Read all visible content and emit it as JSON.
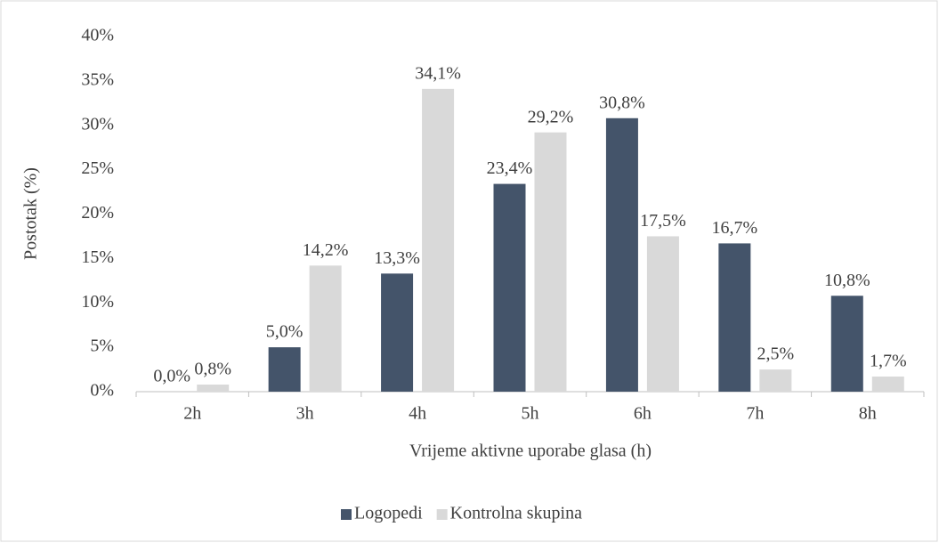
{
  "chart_data": {
    "type": "bar",
    "x_label": "Vrijeme aktivne uporabe glasa (h)",
    "y_label": "Postotak (%)",
    "categories": [
      "2h",
      "3h",
      "4h",
      "5h",
      "6h",
      "7h",
      "8h"
    ],
    "series": [
      {
        "name": "Logopedi",
        "color": "#44546a",
        "values": [
          0,
          5,
          13.3,
          23.4,
          30.8,
          16.7,
          10.8
        ],
        "value_labels": [
          "0,0%",
          "5,0%",
          "13,3%",
          "23,4%",
          "30,8%",
          "16,7%",
          "10,8%"
        ]
      },
      {
        "name": "Kontrolna skupina",
        "color": "#d9d9d9",
        "values": [
          0.8,
          14.2,
          34.1,
          29.2,
          17.5,
          2.5,
          1.7
        ],
        "value_labels": [
          "0,8%",
          "14,2%",
          "34,1%",
          "29,2%",
          "17,5%",
          "2,5%",
          "1,7%"
        ]
      }
    ],
    "ylim": [
      0,
      40
    ],
    "yticks": [
      {
        "value": 0,
        "label": "0%"
      },
      {
        "value": 5,
        "label": "5%"
      },
      {
        "value": 10,
        "label": "10%"
      },
      {
        "value": 15,
        "label": "15%"
      },
      {
        "value": 20,
        "label": "20%"
      },
      {
        "value": 25,
        "label": "25%"
      },
      {
        "value": 30,
        "label": "30%"
      },
      {
        "value": 35,
        "label": "35%"
      },
      {
        "value": 40,
        "label": "40%"
      }
    ],
    "grid": false,
    "legend": "bottom"
  }
}
